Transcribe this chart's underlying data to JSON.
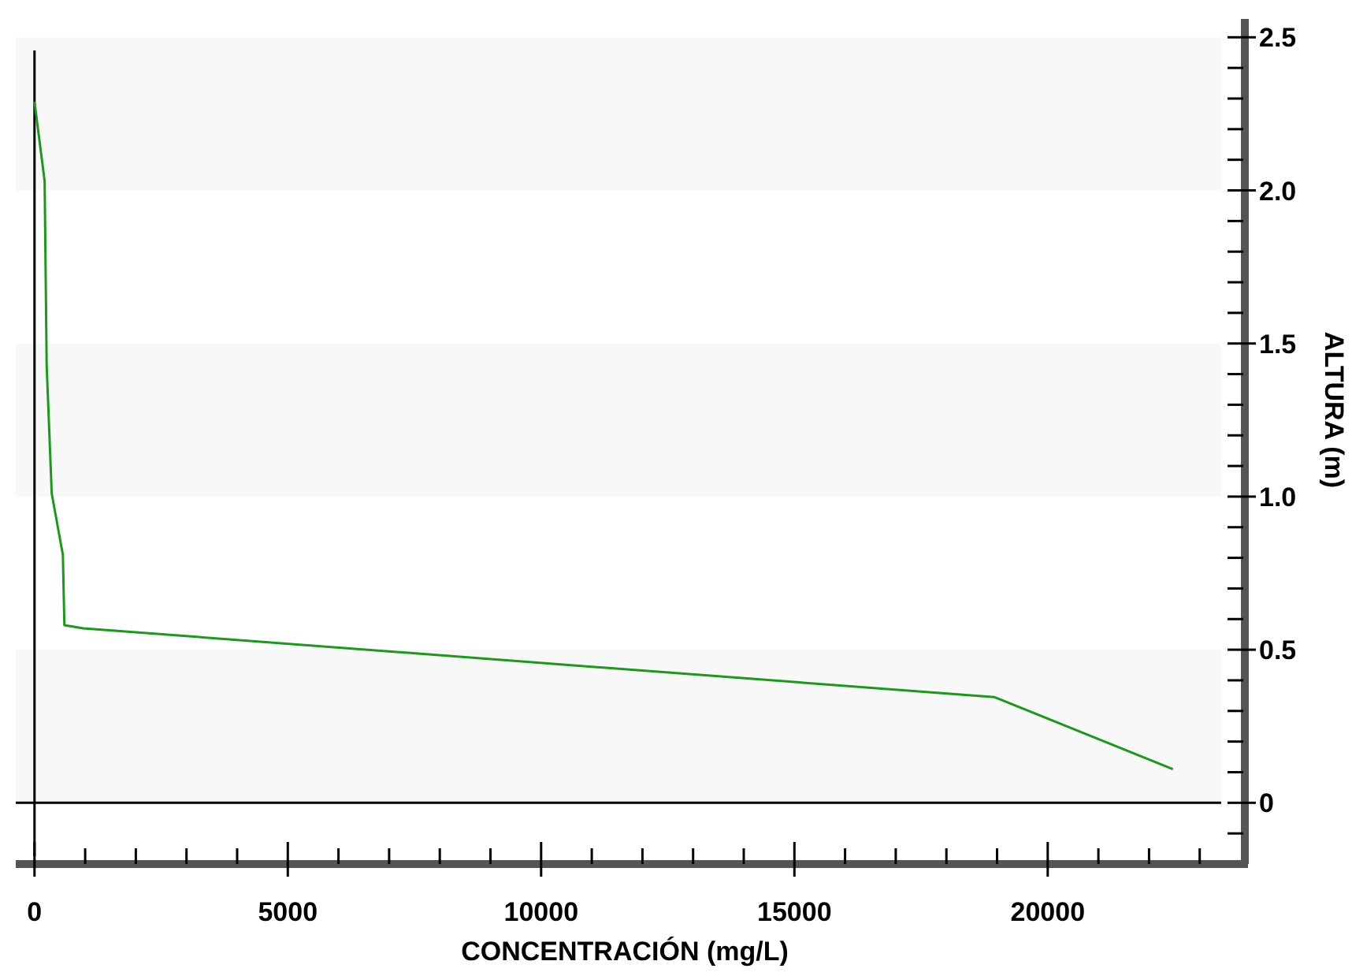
{
  "chart_data": {
    "type": "line",
    "xlabel": "CONCENTRACIÓN (mg/L)",
    "ylabel": "ALTURA (m)",
    "x": [
      0,
      200,
      240,
      340,
      560,
      590,
      960,
      18950,
      22470
    ],
    "series": [
      {
        "color": "#1a9a1a",
        "values": [
          2.29,
          2.03,
          1.43,
          1.01,
          0.81,
          0.58,
          0.57,
          0.345,
          0.11
        ]
      }
    ],
    "xlim": [
      -370,
      23860
    ],
    "ylim": [
      -0.2,
      2.56
    ],
    "xticks": [
      0,
      {
        "value": 1000,
        "label": null
      },
      {
        "value": 2000,
        "label": null
      },
      {
        "value": 3000,
        "label": null
      },
      {
        "value": 4000,
        "label": null
      },
      5000,
      {
        "value": 6000,
        "label": null
      },
      {
        "value": 7000,
        "label": null
      },
      {
        "value": 8000,
        "label": null
      },
      {
        "value": 9000,
        "label": null
      },
      10000,
      {
        "value": 11000,
        "label": null
      },
      {
        "value": 12000,
        "label": null
      },
      {
        "value": 13000,
        "label": null
      },
      {
        "value": 14000,
        "label": null
      },
      15000,
      {
        "value": 16000,
        "label": null
      },
      {
        "value": 17000,
        "label": null
      },
      {
        "value": 18000,
        "label": null
      },
      {
        "value": 19000,
        "label": null
      },
      20000,
      {
        "value": 21000,
        "label": null
      },
      {
        "value": 22000,
        "label": null
      },
      {
        "value": 23000,
        "label": null
      }
    ],
    "yticks": [
      {
        "value": -0.1,
        "label": null
      },
      0,
      {
        "value": 0.1,
        "label": null
      },
      {
        "value": 0.2,
        "label": null
      },
      {
        "value": 0.3,
        "label": null
      },
      {
        "value": 0.4,
        "label": null
      },
      {
        "value": 0.5,
        "label": "0.5"
      },
      {
        "value": 0.6,
        "label": null
      },
      {
        "value": 0.7,
        "label": null
      },
      {
        "value": 0.8,
        "label": null
      },
      {
        "value": 0.9,
        "label": null
      },
      {
        "value": 1,
        "label": "1.0"
      },
      {
        "value": 1.1,
        "label": null
      },
      {
        "value": 1.2,
        "label": null
      },
      {
        "value": 1.3,
        "label": null
      },
      {
        "value": 1.4,
        "label": null
      },
      {
        "value": 1.5,
        "label": "1.5"
      },
      {
        "value": 1.6,
        "label": null
      },
      {
        "value": 1.7,
        "label": null
      },
      {
        "value": 1.8,
        "label": null
      },
      {
        "value": 1.9,
        "label": null
      },
      {
        "value": 2,
        "label": "2.0"
      },
      {
        "value": 2.1,
        "label": null
      },
      {
        "value": 2.2,
        "label": null
      },
      {
        "value": 2.3,
        "label": null
      },
      {
        "value": 2.4,
        "label": null
      },
      {
        "value": 2.5,
        "label": "2.5"
      }
    ],
    "bands": [
      {
        "axis": "y",
        "from": 0,
        "to": 0.5,
        "color": "#f8f8f8"
      },
      {
        "axis": "y",
        "from": 1,
        "to": 1.5,
        "color": "#f8f8f8"
      },
      {
        "axis": "y",
        "from": 2,
        "to": 2.5,
        "color": "#f8f8f8"
      }
    ],
    "line_style": "solid"
  }
}
